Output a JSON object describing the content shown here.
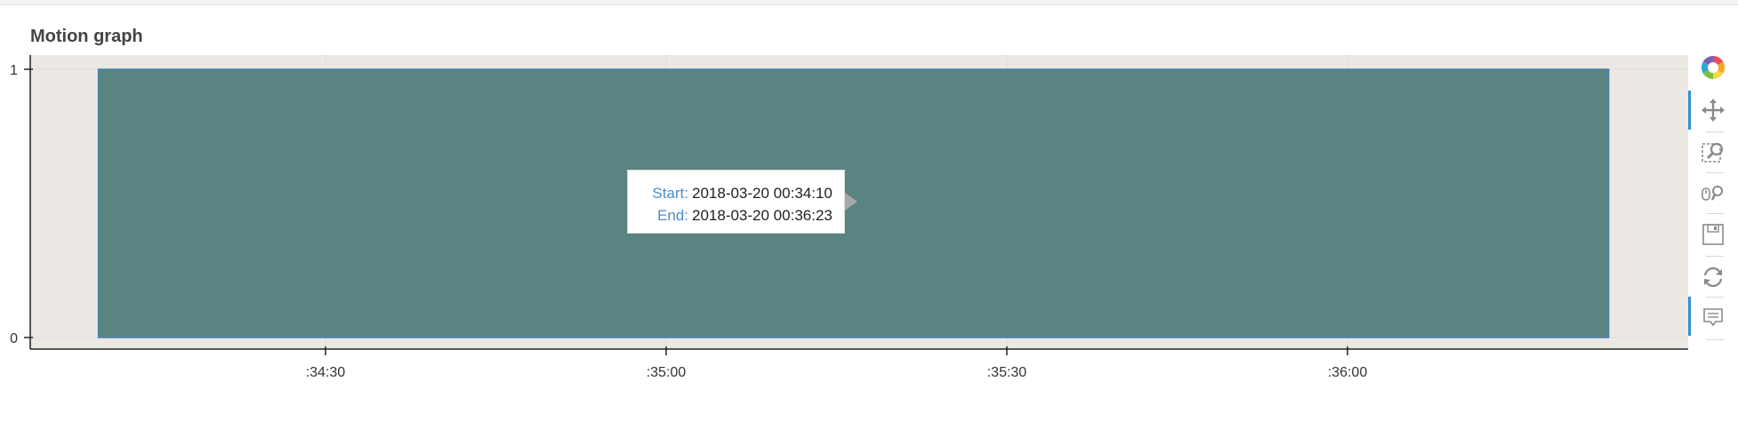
{
  "plot": {
    "title": "Motion graph"
  },
  "chart_data": {
    "type": "bar",
    "title": "Motion graph",
    "xlabel": "",
    "ylabel": "",
    "x_axis_type": "datetime",
    "y_ticks": [
      "0",
      "1"
    ],
    "ylim": [
      0,
      1
    ],
    "x_range": [
      "2018-03-20 00:34:04",
      "2018-03-20 00:36:30"
    ],
    "x_ticks": [
      {
        "time": "2018-03-20 00:34:30",
        "label": ":34:30"
      },
      {
        "time": "2018-03-20 00:35:00",
        "label": ":35:00"
      },
      {
        "time": "2018-03-20 00:35:30",
        "label": ":35:30"
      },
      {
        "time": "2018-03-20 00:36:00",
        "label": ":36:00"
      }
    ],
    "bars": [
      {
        "start": "2018-03-20 00:34:10",
        "end": "2018-03-20 00:36:23",
        "bottom": 0,
        "top": 1
      }
    ],
    "bar_fill": "#5a8481",
    "bar_edge": "#4a7fb0",
    "plot_background": "#ece8e3",
    "grid": true
  },
  "tooltip": {
    "start_label": "Start:",
    "start_value": "2018-03-20 00:34:10",
    "end_label": "End:",
    "end_value": "2018-03-20 00:36:23"
  },
  "toolbar": {
    "tools": [
      {
        "name": "bokeh-logo-icon",
        "active": false
      },
      {
        "name": "pan-icon",
        "active": true
      },
      {
        "name": "box-zoom-icon",
        "active": false
      },
      {
        "name": "wheel-zoom-icon",
        "active": false
      },
      {
        "name": "save-icon",
        "active": false
      },
      {
        "name": "reset-icon",
        "active": false
      },
      {
        "name": "hover-icon",
        "active": true
      }
    ]
  }
}
